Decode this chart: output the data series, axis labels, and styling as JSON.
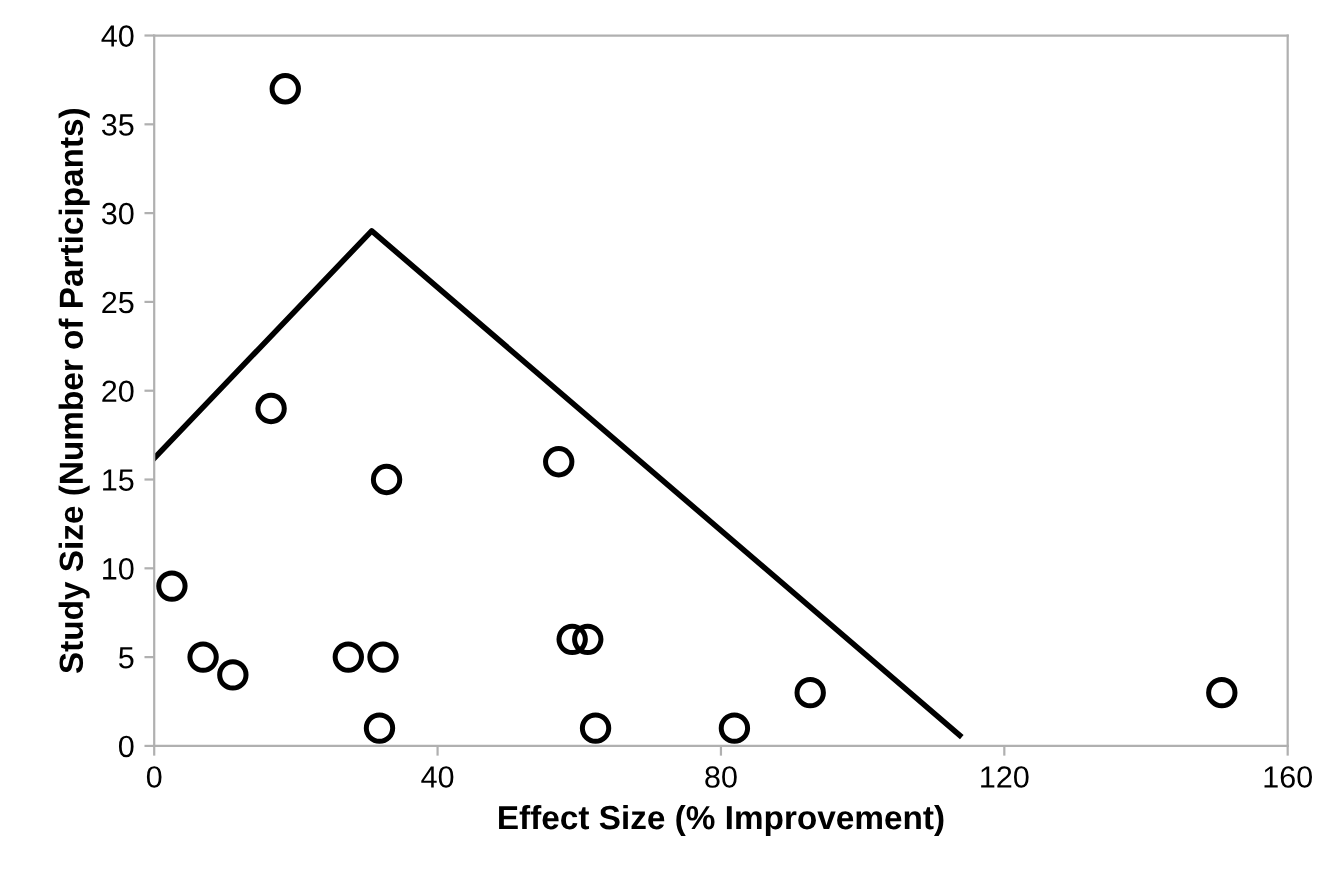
{
  "chart_data": {
    "type": "scatter",
    "xlabel": "Effect Size (% Improvement)",
    "ylabel": "Study Size (Number of Participants)",
    "xlim": [
      0,
      160
    ],
    "ylim": [
      0,
      40
    ],
    "xticks": [
      0,
      40,
      80,
      120,
      160
    ],
    "yticks": [
      0,
      5,
      10,
      15,
      20,
      25,
      30,
      35,
      40
    ],
    "grid": false,
    "legend": false,
    "series": [
      {
        "marker": "circle",
        "color": "#000000",
        "x": [
          2.5,
          6.9,
          11.1,
          18.5,
          16.5,
          27.4,
          32.3,
          32.8,
          31.8,
          57.1,
          59,
          61.2,
          62.3,
          81.9,
          92.6,
          150.7
        ],
        "values": [
          9,
          5,
          4,
          37,
          19,
          5,
          5,
          15,
          1,
          16,
          6,
          6,
          1,
          1,
          3,
          3
        ]
      },
      {
        "type": "line",
        "marker": "none",
        "line_style": "solid",
        "color": "#000000",
        "x": [
          0,
          30.7,
          113.7
        ],
        "values": [
          16.2,
          29,
          0.6
        ]
      }
    ]
  }
}
